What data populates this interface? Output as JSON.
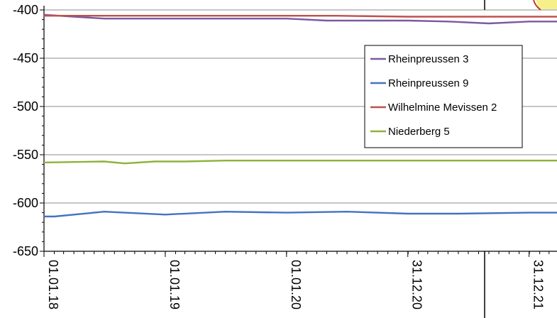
{
  "chart_data": {
    "type": "line",
    "title": "",
    "xlabel": "",
    "ylabel": "",
    "ylim": [
      -650,
      -400
    ],
    "yticks": [
      -400,
      -450,
      -500,
      -550,
      -600,
      -650
    ],
    "ytick_labels": [
      "-400",
      "-450",
      "-500",
      "-550",
      "-600",
      "-650"
    ],
    "xlim": [
      "2018-01-01",
      "2022-03-25"
    ],
    "xticks": [
      "2018-01-01",
      "2019-01-01",
      "2020-01-01",
      "2020-12-31",
      "2021-12-31"
    ],
    "xtick_labels": [
      "01.01.18",
      "01.01.19",
      "01.01.20",
      "31.12.20",
      "31.12.21"
    ],
    "grid": true,
    "legend_position": "upper-right",
    "series": [
      {
        "name": "Rheinpreussen 3",
        "color": "#7a5aa0",
        "points": [
          [
            "2018-01-01",
            -405
          ],
          [
            "2018-04-01",
            -407
          ],
          [
            "2018-07-01",
            -409
          ],
          [
            "2019-01-01",
            -409
          ],
          [
            "2019-07-01",
            -409
          ],
          [
            "2020-01-01",
            -409
          ],
          [
            "2020-05-01",
            -411
          ],
          [
            "2020-12-31",
            -411
          ],
          [
            "2021-05-01",
            -412
          ],
          [
            "2021-09-01",
            -414
          ],
          [
            "2022-01-01",
            -412
          ],
          [
            "2022-03-25",
            -412
          ]
        ]
      },
      {
        "name": "Rheinpreussen 9",
        "color": "#4472c4",
        "points": [
          [
            "2018-01-01",
            -614
          ],
          [
            "2018-02-01",
            -614
          ],
          [
            "2018-07-01",
            -609
          ],
          [
            "2019-01-01",
            -612
          ],
          [
            "2019-07-01",
            -609
          ],
          [
            "2020-01-01",
            -610
          ],
          [
            "2020-07-01",
            -609
          ],
          [
            "2021-01-01",
            -611
          ],
          [
            "2021-06-01",
            -611
          ],
          [
            "2022-01-01",
            -610
          ],
          [
            "2022-03-25",
            -610
          ]
        ]
      },
      {
        "name": "Wilhelmine Mevissen 2",
        "color": "#c0504d",
        "points": [
          [
            "2018-01-01",
            -406
          ],
          [
            "2018-06-01",
            -406
          ],
          [
            "2019-01-01",
            -406
          ],
          [
            "2019-06-01",
            -406
          ],
          [
            "2020-01-01",
            -406
          ],
          [
            "2020-06-01",
            -406
          ],
          [
            "2021-01-01",
            -407
          ],
          [
            "2021-06-01",
            -407
          ],
          [
            "2022-01-01",
            -407
          ],
          [
            "2022-03-25",
            -407
          ]
        ]
      },
      {
        "name": "Niederberg 5",
        "color": "#8db33a",
        "points": [
          [
            "2018-01-01",
            -558
          ],
          [
            "2018-07-01",
            -557
          ],
          [
            "2018-09-01",
            -559
          ],
          [
            "2018-12-01",
            -557
          ],
          [
            "2019-03-01",
            -557
          ],
          [
            "2019-07-01",
            -556
          ],
          [
            "2020-01-01",
            -556
          ],
          [
            "2020-07-01",
            -556
          ],
          [
            "2021-01-01",
            -556
          ],
          [
            "2021-07-01",
            -556
          ],
          [
            "2022-01-01",
            -556
          ],
          [
            "2022-03-25",
            -556
          ]
        ]
      }
    ]
  }
}
